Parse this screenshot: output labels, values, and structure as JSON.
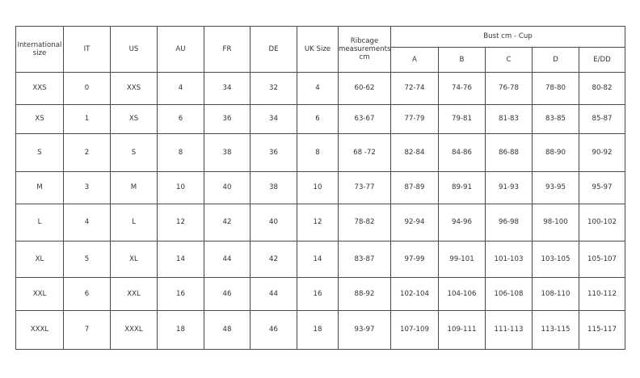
{
  "headers": {
    "international": "International size",
    "it": "IT",
    "us": "US",
    "au": "AU",
    "fr": "FR",
    "de": "DE",
    "uk": "UK Size",
    "ribcage": "Ribcage measurements cm",
    "bust_group": "Bust cm - Cup",
    "cups": [
      "A",
      "B",
      "C",
      "D",
      "E/DD"
    ]
  },
  "rows": [
    [
      "XXS",
      "0",
      "XXS",
      "4",
      "34",
      "32",
      "4",
      "60-62",
      "72-74",
      "74-76",
      "76-78",
      "78-80",
      "80-82"
    ],
    [
      "XS",
      "1",
      "XS",
      "6",
      "36",
      "34",
      "6",
      "63-67",
      "77-79",
      "79-81",
      "81-83",
      "83-85",
      "85-87"
    ],
    [
      "S",
      "2",
      "S",
      "8",
      "38",
      "36",
      "8",
      "68 -72",
      "82-84",
      "84-86",
      "86-88",
      "88-90",
      "90-92"
    ],
    [
      "M",
      "3",
      "M",
      "10",
      "40",
      "38",
      "10",
      "73-77",
      "87-89",
      "89-91",
      "91-93",
      "93-95",
      "95-97"
    ],
    [
      "L",
      "4",
      "L",
      "12",
      "42",
      "40",
      "12",
      "78-82",
      "92-94",
      "94-96",
      "96-98",
      "98-100",
      "100-102"
    ],
    [
      "XL",
      "5",
      "XL",
      "14",
      "44",
      "42",
      "14",
      "83-87",
      "97-99",
      "99-101",
      "101-103",
      "103-105",
      "105-107"
    ],
    [
      "XXL",
      "6",
      "XXL",
      "16",
      "46",
      "44",
      "16",
      "88-92",
      "102-104",
      "104-106",
      "106-108",
      "108-110",
      "110-112"
    ],
    [
      "XXXL",
      "7",
      "XXXL",
      "18",
      "48",
      "46",
      "18",
      "93-97",
      "107-109",
      "109-111",
      "111-113",
      "113-115",
      "115-117"
    ]
  ]
}
